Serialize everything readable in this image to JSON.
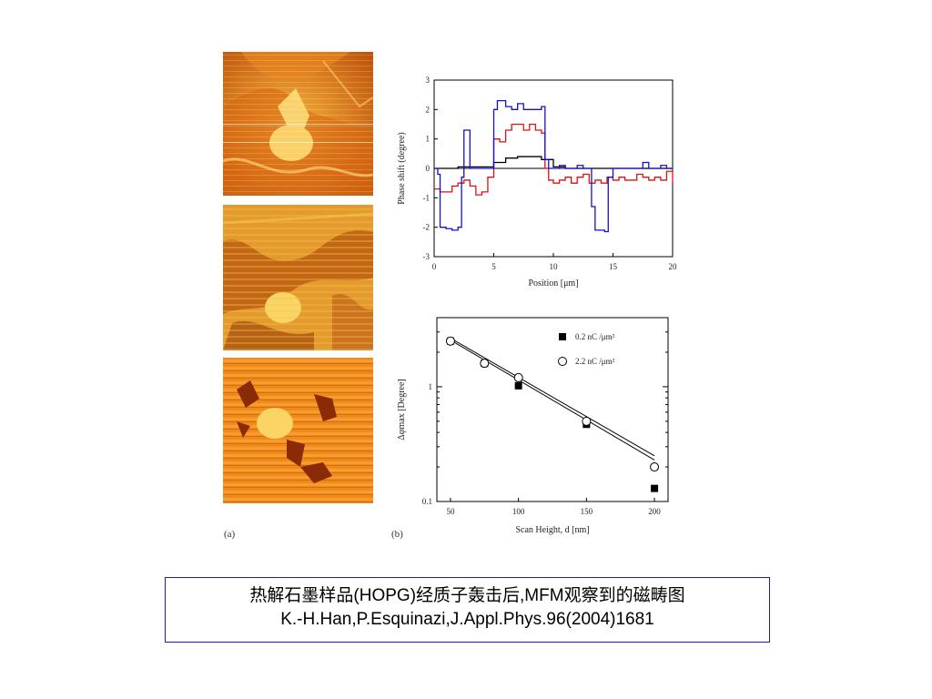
{
  "panels": {
    "a_label": "(a)",
    "b_label": "(b)"
  },
  "chart_data": [
    {
      "type": "line",
      "xlabel": "Position [μm]",
      "ylabel": "Phase shift (degree)",
      "xlim": [
        0,
        20
      ],
      "ylim": [
        -3,
        3
      ],
      "xticks": [
        0,
        5,
        10,
        15,
        20
      ],
      "yticks": [
        -3,
        -2,
        -1,
        0,
        1,
        2,
        3
      ],
      "series": [
        {
          "color": "#000000",
          "x": [
            0,
            1,
            2,
            3,
            4,
            5,
            6,
            7,
            8,
            9,
            10,
            11,
            12,
            13,
            14,
            15,
            16,
            17,
            18,
            19,
            20
          ],
          "y": [
            0,
            0,
            0.05,
            0.05,
            0.05,
            0.2,
            0.35,
            0.4,
            0.4,
            0.3,
            0.05,
            0,
            0,
            0,
            0,
            0,
            0,
            0,
            0,
            0,
            0
          ]
        },
        {
          "color": "#dd1111",
          "x": [
            0,
            0.5,
            1,
            1.5,
            2,
            2.5,
            3,
            3.5,
            4,
            4.5,
            5,
            5.5,
            6,
            6.5,
            7,
            7.5,
            8,
            8.5,
            9,
            9.3,
            9.6,
            10,
            10.5,
            11,
            11.5,
            12,
            12.5,
            13,
            13.5,
            14,
            14.5,
            15,
            15.5,
            16,
            16.5,
            17,
            17.5,
            18,
            18.5,
            19,
            19.5,
            20
          ],
          "y": [
            -0.7,
            -0.8,
            -0.8,
            -0.6,
            -0.5,
            -0.4,
            -0.6,
            -0.9,
            -0.8,
            -0.3,
            1.0,
            0.9,
            1.3,
            1.5,
            1.5,
            1.3,
            1.5,
            1.3,
            1.2,
            0.0,
            -0.4,
            -0.5,
            -0.4,
            -0.3,
            -0.5,
            -0.3,
            -0.2,
            -0.5,
            -0.4,
            -0.5,
            -0.3,
            -0.4,
            -0.3,
            -0.4,
            -0.4,
            -0.2,
            -0.3,
            -0.4,
            -0.3,
            -0.4,
            -0.1,
            -0.5
          ]
        },
        {
          "color": "#1111cc",
          "x": [
            0,
            0.3,
            0.5,
            1,
            1.5,
            2,
            2.3,
            2.5,
            3,
            3.5,
            4,
            4.5,
            5,
            5.3,
            6,
            6.5,
            7,
            7.5,
            8,
            8.5,
            9,
            9.3,
            9.6,
            10,
            10.5,
            11,
            11.5,
            12,
            12.5,
            13,
            13.2,
            13.5,
            14,
            14.3,
            14.6,
            15,
            15.5,
            16,
            16.5,
            17,
            17.5,
            18,
            18.5,
            19,
            19.5,
            20
          ],
          "y": [
            0.0,
            -0.2,
            -2.0,
            -2.05,
            -2.1,
            -2.0,
            -0.3,
            1.3,
            0.0,
            0.0,
            0.0,
            0.0,
            2.0,
            2.3,
            2.1,
            2.0,
            2.2,
            2.0,
            2.0,
            2.0,
            2.1,
            0.3,
            0.0,
            0.0,
            0.1,
            0.0,
            0.0,
            0.1,
            0.0,
            0.0,
            -1.3,
            -2.1,
            -2.1,
            -2.15,
            -0.3,
            0.0,
            0.0,
            0.0,
            0.0,
            0.0,
            0.2,
            0.0,
            0.0,
            0.1,
            0.0,
            0.0
          ]
        }
      ]
    },
    {
      "type": "scatter",
      "xlabel": "Scan Height, d [nm]",
      "ylabel": "Δφmax [Degree]",
      "xlim": [
        40,
        210
      ],
      "ylim": [
        0.1,
        4
      ],
      "yscale": "log",
      "xticks": [
        50,
        100,
        150,
        200
      ],
      "yticks": [
        0.1,
        1
      ],
      "legend_position": "top-right",
      "series": [
        {
          "name": "0.2 nC /μm²",
          "marker": "filled",
          "x": [
            50,
            75,
            100,
            150,
            200
          ],
          "y": [
            2.5,
            1.6,
            1.02,
            0.47,
            0.13
          ]
        },
        {
          "name": "2.2 nC /μm²",
          "marker": "open",
          "x": [
            50,
            75,
            100,
            150,
            200
          ],
          "y": [
            2.5,
            1.6,
            1.2,
            0.5,
            0.2
          ]
        }
      ],
      "fit_lines": [
        {
          "x": [
            50,
            200
          ],
          "y": [
            2.55,
            0.23
          ]
        },
        {
          "x": [
            50,
            200
          ],
          "y": [
            2.65,
            0.25
          ]
        }
      ]
    }
  ],
  "caption": {
    "line1": "热解石墨样品(HOPG)经质子轰击后,MFM观察到的磁畴图",
    "line2": "K.-H.Han,P.Esquinazi,J.Appl.Phys.96(2004)1681"
  }
}
